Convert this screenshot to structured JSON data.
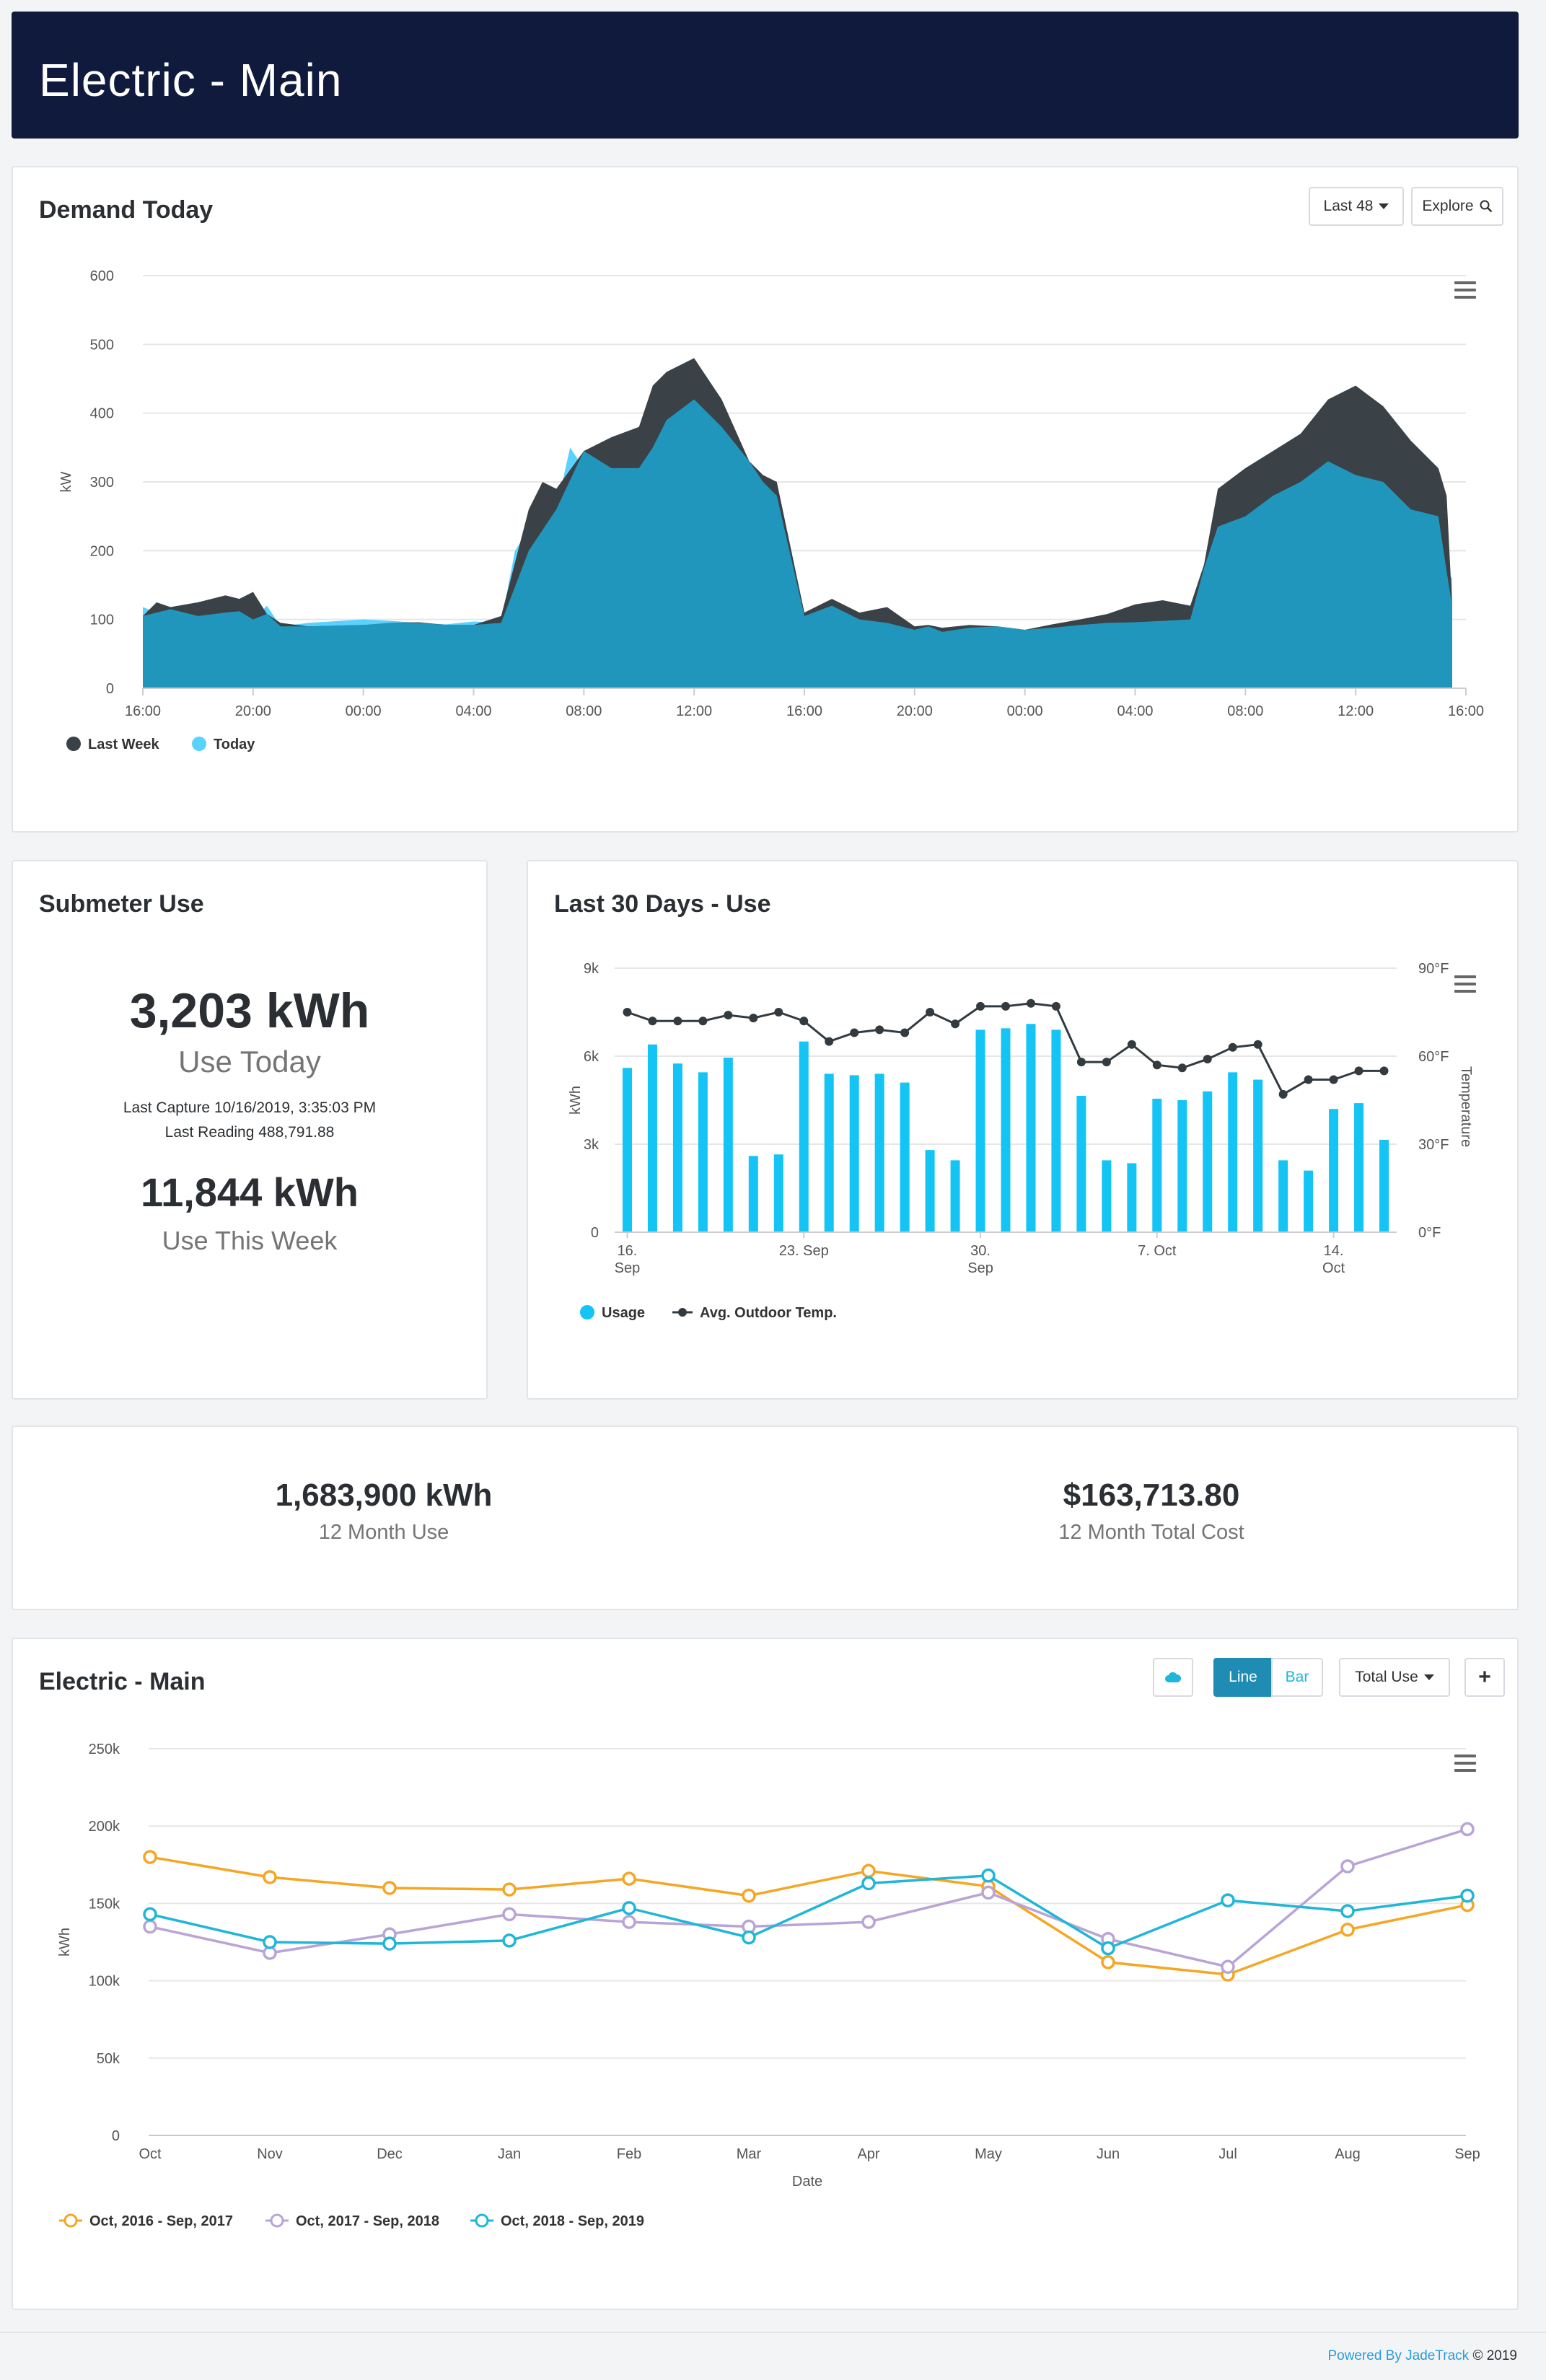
{
  "page": {
    "title": "Electric - Main"
  },
  "demand": {
    "title": "Demand Today",
    "range_button": "Last 48",
    "explore_button": "Explore",
    "ylabel": "kW",
    "yticks": [
      "600",
      "500",
      "400",
      "300",
      "200",
      "100",
      "0"
    ],
    "xticks": [
      "16:00",
      "20:00",
      "00:00",
      "04:00",
      "08:00",
      "12:00",
      "16:00",
      "20:00",
      "00:00",
      "04:00",
      "08:00",
      "12:00",
      "16:00"
    ],
    "legend": [
      "Last Week",
      "Today"
    ],
    "colors": {
      "last_week": "#3a4247",
      "today": "#5ad2ff",
      "overlap": "#2196bd"
    }
  },
  "submeter": {
    "title": "Submeter Use",
    "today_value": "3,203 kWh",
    "today_label": "Use Today",
    "last_capture": "Last Capture 10/16/2019, 3:35:03 PM",
    "last_reading": "Last Reading 488,791.88",
    "week_value": "11,844 kWh",
    "week_label": "Use This Week"
  },
  "last30": {
    "title": "Last 30 Days - Use",
    "ylabel_left": "kWh",
    "ylabel_right": "Temperature",
    "yticks_left": [
      "9k",
      "6k",
      "3k",
      "0"
    ],
    "yticks_right": [
      "90°F",
      "60°F",
      "30°F",
      "0°F"
    ],
    "xticks": [
      [
        "16.",
        "Sep"
      ],
      [
        "23. Sep",
        ""
      ],
      [
        "30.",
        "Sep"
      ],
      [
        "7. Oct",
        ""
      ],
      [
        "14.",
        "Oct"
      ]
    ],
    "legend": [
      "Usage",
      "Avg. Outdoor Temp."
    ],
    "colors": {
      "usage": "#14c4f5",
      "temp": "#333b40"
    }
  },
  "annual": {
    "use_value": "1,683,900 kWh",
    "use_label": "12 Month Use",
    "cost_value": "$163,713.80",
    "cost_label": "12 Month Total Cost"
  },
  "history": {
    "title": "Electric - Main",
    "line_button": "Line",
    "bar_button": "Bar",
    "metric_button": "Total Use",
    "add_button": "+",
    "ylabel": "kWh",
    "xlabel": "Date",
    "yticks": [
      "250k",
      "200k",
      "150k",
      "100k",
      "50k",
      "0"
    ],
    "legend": [
      "Oct, 2016 - Sep, 2017",
      "Oct, 2017 - Sep, 2018",
      "Oct, 2018 - Sep, 2019"
    ]
  },
  "footer": {
    "powered": "Powered By JadeTrack",
    "copyright": "© 2019"
  },
  "chart_data": [
    {
      "type": "area",
      "title": "Demand Today",
      "ylabel": "kW",
      "ylim": [
        0,
        600
      ],
      "x_range_hours": [
        0,
        48
      ],
      "series": [
        {
          "name": "Last Week",
          "hours": [
            0,
            0.5,
            1,
            2,
            3,
            3.5,
            4,
            4.5,
            5,
            6,
            8,
            9,
            10,
            11,
            12,
            13,
            14,
            14.5,
            15,
            16,
            17,
            18,
            18.5,
            19,
            20,
            21,
            22,
            22.5,
            23,
            24,
            25,
            26,
            27,
            28,
            28.5,
            29,
            30,
            31,
            32,
            33,
            34,
            35,
            36,
            37,
            38,
            38.5,
            39,
            40,
            41,
            42,
            43,
            44,
            45,
            46,
            47,
            47.3,
            47.5
          ],
          "values": [
            105,
            125,
            118,
            125,
            135,
            130,
            140,
            108,
            95,
            90,
            92,
            95,
            96,
            92,
            92,
            105,
            260,
            300,
            290,
            345,
            365,
            380,
            440,
            460,
            480,
            420,
            330,
            310,
            300,
            110,
            130,
            110,
            118,
            90,
            92,
            88,
            92,
            90,
            85,
            93,
            100,
            108,
            122,
            128,
            120,
            180,
            290,
            320,
            345,
            370,
            420,
            440,
            410,
            360,
            320,
            280,
            120
          ]
        },
        {
          "name": "Today",
          "hours": [
            0,
            0.5,
            1,
            2,
            3,
            3.5,
            4,
            4.5,
            5,
            6,
            8,
            9,
            10,
            11,
            12,
            13,
            13.5,
            14,
            15,
            15.5,
            16,
            17,
            18,
            19,
            20,
            21,
            22,
            22.5,
            23,
            24,
            25,
            26,
            27,
            28,
            28.5,
            29,
            30,
            31,
            32,
            33,
            34,
            35,
            36,
            37,
            38,
            38.5,
            39,
            40,
            41,
            42,
            43,
            44,
            45,
            46,
            47,
            47.3,
            47.5
          ],
          "values": [
            118,
            110,
            115,
            105,
            110,
            112,
            100,
            120,
            90,
            95,
            100,
            98,
            95,
            93,
            97,
            95,
            200,
            230,
            260,
            350,
            320,
            320,
            350,
            390,
            420,
            380,
            330,
            300,
            280,
            105,
            120,
            100,
            95,
            85,
            90,
            82,
            88,
            90,
            85,
            88,
            92,
            95,
            96,
            98,
            100,
            175,
            235,
            250,
            280,
            300,
            330,
            310,
            300,
            260,
            250,
            170,
            160
          ]
        }
      ]
    },
    {
      "type": "bar",
      "title": "Last 30 Days - Use",
      "categories": [
        "Sep 16",
        "Sep 17",
        "Sep 18",
        "Sep 19",
        "Sep 20",
        "Sep 21",
        "Sep 22",
        "Sep 23",
        "Sep 24",
        "Sep 25",
        "Sep 26",
        "Sep 27",
        "Sep 28",
        "Sep 29",
        "Sep 30",
        "Oct 1",
        "Oct 2",
        "Oct 3",
        "Oct 4",
        "Oct 5",
        "Oct 6",
        "Oct 7",
        "Oct 8",
        "Oct 9",
        "Oct 10",
        "Oct 11",
        "Oct 12",
        "Oct 13",
        "Oct 14",
        "Oct 15",
        "Oct 16"
      ],
      "series": [
        {
          "name": "Usage",
          "axis": "left",
          "unit": "kWh",
          "values": [
            5600,
            6400,
            5750,
            5450,
            5950,
            2600,
            2650,
            6500,
            5400,
            5350,
            5400,
            5100,
            2800,
            2450,
            6900,
            6950,
            7100,
            6900,
            4650,
            2450,
            2350,
            4550,
            4500,
            4800,
            5450,
            5200,
            2450,
            2100,
            4200,
            4400,
            3150
          ]
        },
        {
          "name": "Avg. Outdoor Temp.",
          "axis": "right",
          "unit": "°F",
          "type": "line",
          "values": [
            75,
            72,
            72,
            72,
            74,
            73,
            75,
            72,
            65,
            68,
            69,
            68,
            75,
            71,
            77,
            77,
            78,
            77,
            58,
            58,
            64,
            57,
            56,
            59,
            63,
            64,
            47,
            52,
            52,
            55,
            55
          ]
        }
      ],
      "ylim_left": [
        0,
        9000
      ],
      "ylim_right": [
        0,
        90
      ]
    },
    {
      "type": "line",
      "title": "Electric - Main",
      "xlabel": "Date",
      "ylabel": "kWh",
      "categories": [
        "Oct",
        "Nov",
        "Dec",
        "Jan",
        "Feb",
        "Mar",
        "Apr",
        "May",
        "Jun",
        "Jul",
        "Aug",
        "Sep"
      ],
      "ylim": [
        0,
        250000
      ],
      "series": [
        {
          "name": "Oct, 2016 - Sep, 2017",
          "color": "#f5a623",
          "values": [
            180000,
            167000,
            160000,
            159000,
            166000,
            155000,
            171000,
            161000,
            112000,
            104000,
            133000,
            149000
          ]
        },
        {
          "name": "Oct, 2017 - Sep, 2018",
          "color": "#b9a4d6",
          "values": [
            135000,
            118000,
            130000,
            143000,
            138000,
            135000,
            138000,
            157000,
            127000,
            109000,
            174000,
            198000
          ]
        },
        {
          "name": "Oct, 2018 - Sep, 2019",
          "color": "#1fb6d8",
          "values": [
            143000,
            125000,
            124000,
            126000,
            147000,
            128000,
            163000,
            168000,
            121000,
            152000,
            145000,
            155000
          ]
        }
      ]
    }
  ]
}
